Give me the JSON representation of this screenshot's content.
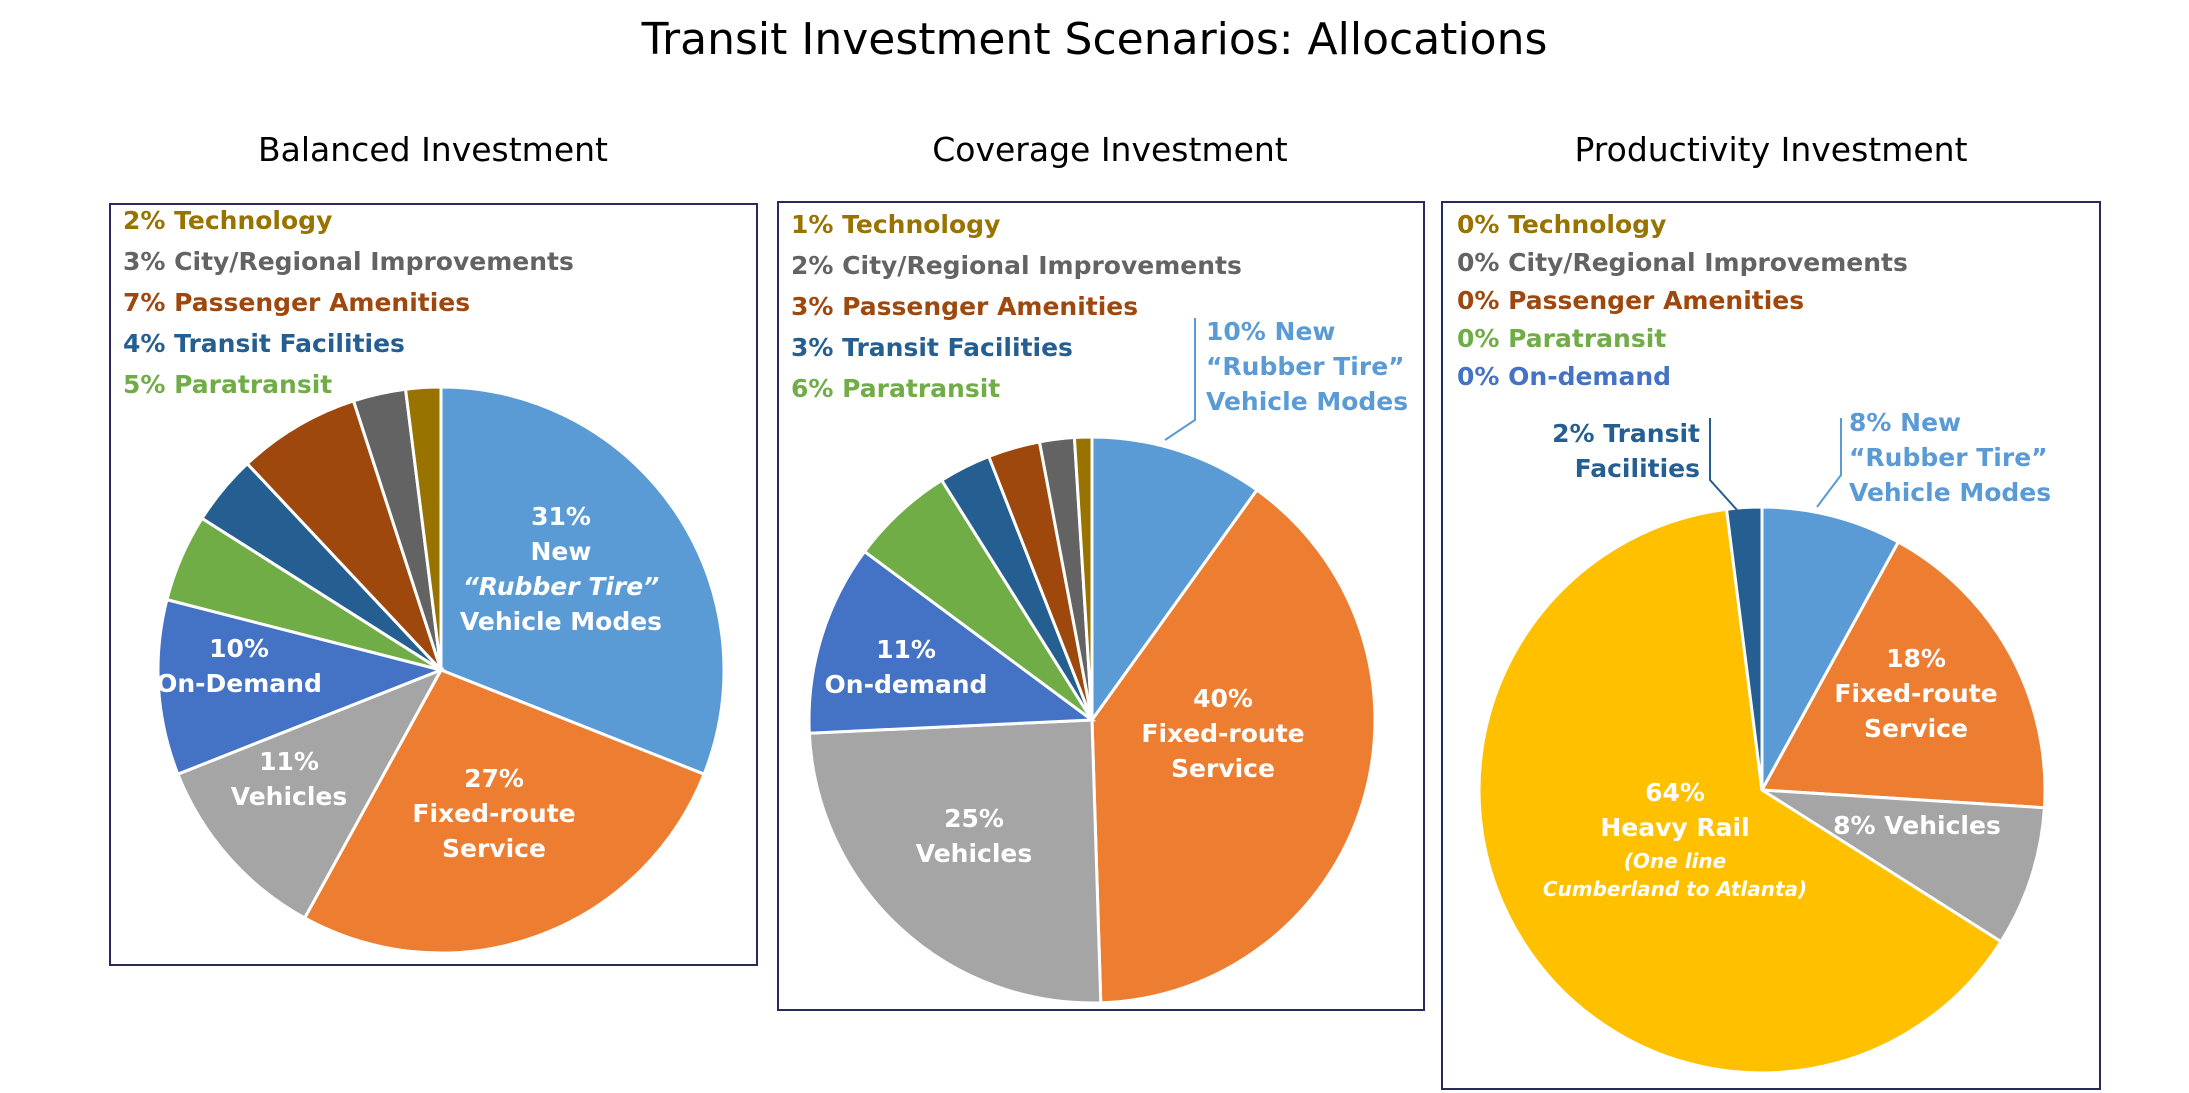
{
  "title": "Transit Investment Scenarios: Allocations",
  "colors": {
    "rubber_tire": "#5b9bd5",
    "fixed_route": "#ed7d31",
    "vehicles": "#a5a5a5",
    "on_demand": "#4472c4",
    "paratransit": "#70ad47",
    "transit_facilities": "#255e91",
    "passenger_amenities": "#9e480e",
    "city_regional": "#636363",
    "technology": "#997300",
    "heavy_rail": "#ffc000",
    "border": "#2b2a5c"
  },
  "chart_data": [
    {
      "type": "pie",
      "title": "Balanced Investment",
      "legend": [
        {
          "text": "2% Technology",
          "color": "#997300"
        },
        {
          "text": "3% City/Regional Improvements",
          "color": "#636363"
        },
        {
          "text": "7% Passenger Amenities",
          "color": "#9e480e"
        },
        {
          "text": "4% Transit Facilities",
          "color": "#255e91"
        },
        {
          "text": "5% Paratransit",
          "color": "#70ad47"
        }
      ],
      "slices": [
        {
          "category": "New \"Rubber Tire\" Vehicle Modes",
          "value": 31,
          "color": "#5b9bd5",
          "label": [
            "31%",
            "New",
            "“Rubber Tire”",
            "Vehicle Modes"
          ]
        },
        {
          "category": "Fixed-route Service",
          "value": 27,
          "color": "#ed7d31",
          "label": [
            "27%",
            "Fixed-route",
            "Service"
          ]
        },
        {
          "category": "Vehicles",
          "value": 11,
          "color": "#a5a5a5",
          "label": [
            "11%",
            "Vehicles"
          ]
        },
        {
          "category": "On-Demand",
          "value": 10,
          "color": "#4472c4",
          "label": [
            "10%",
            "On-Demand"
          ]
        },
        {
          "category": "Paratransit",
          "value": 5,
          "color": "#70ad47"
        },
        {
          "category": "Transit Facilities",
          "value": 4,
          "color": "#255e91"
        },
        {
          "category": "Passenger Amenities",
          "value": 7,
          "color": "#9e480e"
        },
        {
          "category": "City/Regional Improvements",
          "value": 3,
          "color": "#636363"
        },
        {
          "category": "Technology",
          "value": 2,
          "color": "#997300"
        }
      ]
    },
    {
      "type": "pie",
      "title": "Coverage Investment",
      "legend": [
        {
          "text": "1% Technology",
          "color": "#997300"
        },
        {
          "text": "2% City/Regional Improvements",
          "color": "#636363"
        },
        {
          "text": "3% Passenger Amenities",
          "color": "#9e480e"
        },
        {
          "text": "3% Transit Facilities",
          "color": "#255e91"
        },
        {
          "text": "6% Paratransit",
          "color": "#70ad47"
        }
      ],
      "callout": [
        "10%  New",
        "“Rubber Tire”",
        "Vehicle Modes"
      ],
      "slices": [
        {
          "category": "New \"Rubber Tire\" Vehicle Modes",
          "value": 10,
          "color": "#5b9bd5"
        },
        {
          "category": "Fixed-route Service",
          "value": 40,
          "color": "#ed7d31",
          "label": [
            "40%",
            "Fixed-route",
            "Service"
          ]
        },
        {
          "category": "Vehicles",
          "value": 25,
          "color": "#a5a5a5",
          "label": [
            "25%",
            "Vehicles"
          ]
        },
        {
          "category": "On-demand",
          "value": 11,
          "color": "#4472c4",
          "label": [
            "11%",
            "On-demand"
          ]
        },
        {
          "category": "Paratransit",
          "value": 6,
          "color": "#70ad47"
        },
        {
          "category": "Transit Facilities",
          "value": 3,
          "color": "#255e91"
        },
        {
          "category": "Passenger Amenities",
          "value": 3,
          "color": "#9e480e"
        },
        {
          "category": "City/Regional Improvements",
          "value": 2,
          "color": "#636363"
        },
        {
          "category": "Technology",
          "value": 1,
          "color": "#997300"
        }
      ]
    },
    {
      "type": "pie",
      "title": "Productivity Investment",
      "legend": [
        {
          "text": "0% Technology",
          "color": "#997300"
        },
        {
          "text": "0% City/Regional Improvements",
          "color": "#636363"
        },
        {
          "text": "0% Passenger Amenities",
          "color": "#9e480e"
        },
        {
          "text": "0% Paratransit",
          "color": "#70ad47"
        },
        {
          "text": "0% On-demand",
          "color": "#4472c4"
        }
      ],
      "callout": [
        "8%  New",
        "“Rubber Tire”",
        "Vehicle Modes"
      ],
      "callout2": [
        "2% Transit",
        "Facilities"
      ],
      "slices": [
        {
          "category": "New \"Rubber Tire\" Vehicle Modes",
          "value": 8,
          "color": "#5b9bd5"
        },
        {
          "category": "Fixed-route Service",
          "value": 18,
          "color": "#ed7d31",
          "label": [
            "18%",
            "Fixed-route",
            "Service"
          ]
        },
        {
          "category": "Vehicles",
          "value": 8,
          "color": "#a5a5a5",
          "label": [
            "8%  Vehicles"
          ]
        },
        {
          "category": "Heavy Rail",
          "value": 64,
          "color": "#ffc000",
          "label": [
            "64%",
            "Heavy Rail"
          ],
          "sublabel": [
            "(One line",
            "Cumberland to Atlanta)"
          ]
        },
        {
          "category": "Transit Facilities",
          "value": 2,
          "color": "#255e91"
        }
      ]
    }
  ]
}
